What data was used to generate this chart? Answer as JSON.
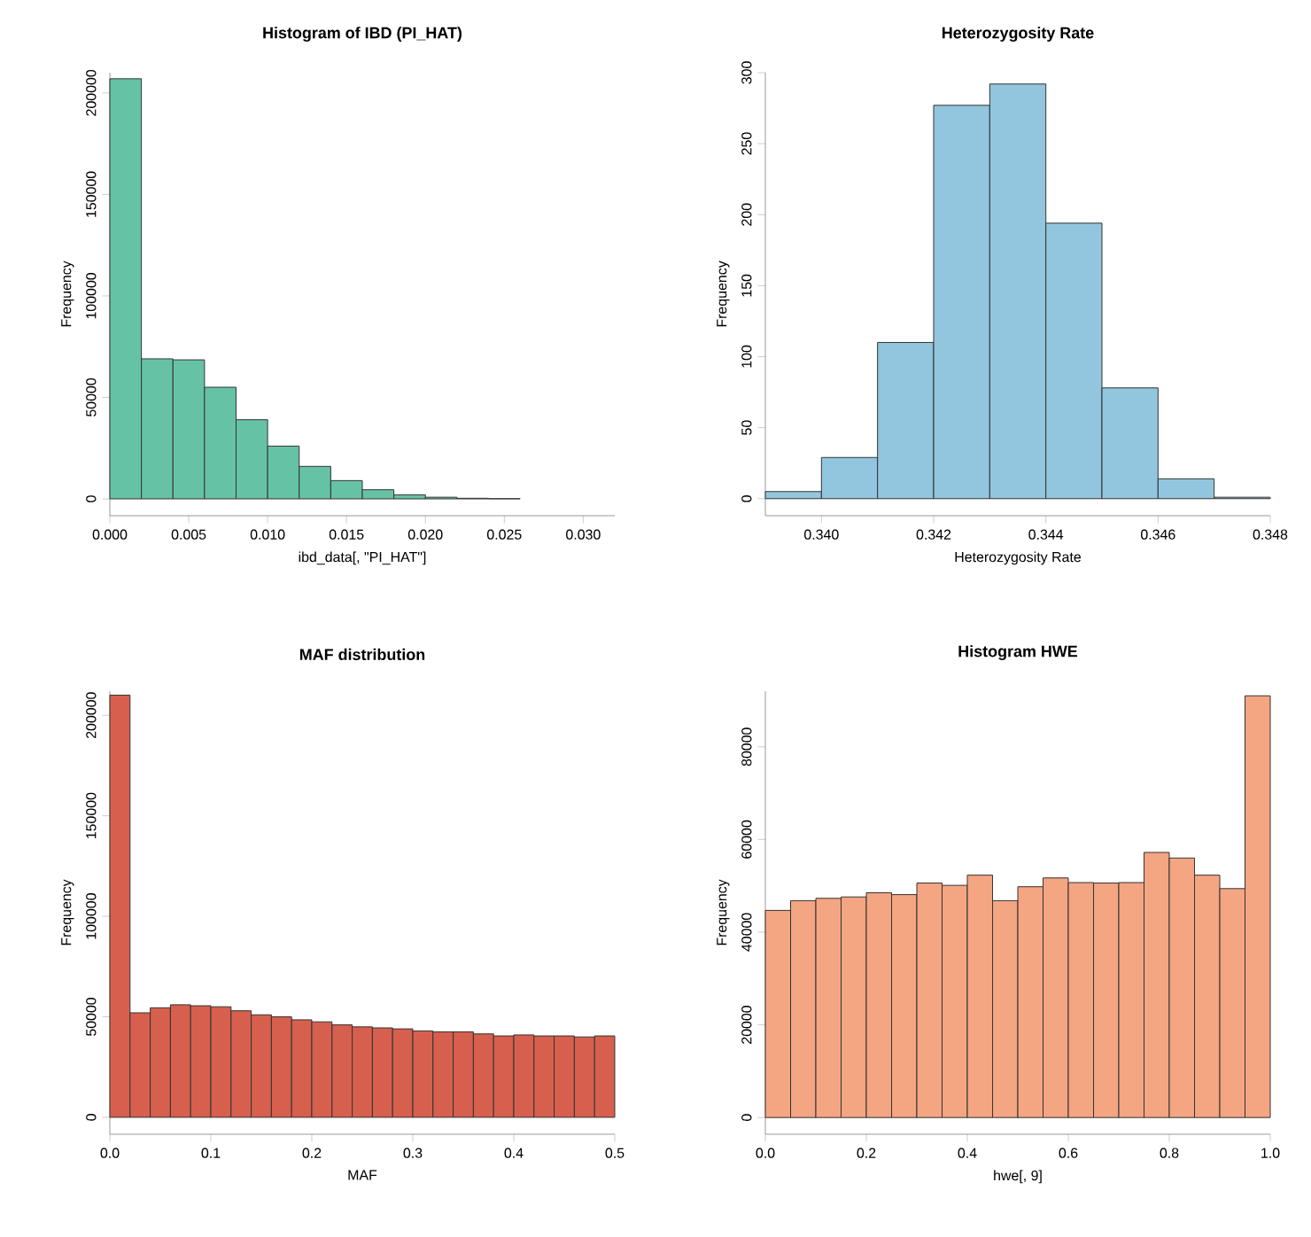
{
  "chart_data": [
    {
      "type": "histogram",
      "title": "Histogram of IBD (PI_HAT)",
      "xlabel": "ibd_data[, \"PI_HAT\"]",
      "ylabel": "Frequency",
      "color": "#66c2a5",
      "bins": [
        0.0,
        0.002,
        0.004,
        0.006,
        0.008,
        0.01,
        0.012,
        0.014,
        0.016,
        0.018,
        0.02,
        0.022,
        0.024,
        0.026,
        0.028,
        0.03,
        0.032
      ],
      "values": [
        207000,
        69000,
        68500,
        55000,
        39000,
        26000,
        16000,
        9000,
        4500,
        2000,
        800,
        300,
        100,
        null,
        null,
        null
      ],
      "xlim": [
        0.0,
        0.032
      ],
      "ylim": [
        -8300,
        210000
      ],
      "xticks": [
        {
          "value": 0.0,
          "label": "0.000"
        },
        {
          "value": 0.005,
          "label": "0.005"
        },
        {
          "value": 0.01,
          "label": "0.010"
        },
        {
          "value": 0.015,
          "label": "0.015"
        },
        {
          "value": 0.02,
          "label": "0.020"
        },
        {
          "value": 0.025,
          "label": "0.025"
        },
        {
          "value": 0.03,
          "label": "0.030"
        }
      ],
      "yticks": [
        0,
        50000,
        100000,
        150000,
        200000
      ]
    },
    {
      "type": "histogram",
      "title": "Heterozygosity Rate",
      "xlabel": "Heterozygosity Rate",
      "ylabel": "Frequency",
      "color": "#92c5de",
      "bins": [
        0.339,
        0.34,
        0.341,
        0.342,
        0.343,
        0.344,
        0.345,
        0.346,
        0.347,
        0.348
      ],
      "values": [
        5,
        29,
        110,
        277,
        292,
        194,
        78,
        14,
        1
      ],
      "xlim": [
        0.339,
        0.348
      ],
      "ylim": [
        -12,
        300
      ],
      "xticks": [
        {
          "value": 0.34,
          "label": "0.340"
        },
        {
          "value": 0.342,
          "label": "0.342"
        },
        {
          "value": 0.344,
          "label": "0.344"
        },
        {
          "value": 0.346,
          "label": "0.346"
        },
        {
          "value": 0.348,
          "label": "0.348"
        }
      ],
      "yticks": [
        0,
        50,
        100,
        150,
        200,
        250,
        300
      ]
    },
    {
      "type": "histogram",
      "title": "MAF distribution",
      "xlabel": "MAF",
      "ylabel": "Frequency",
      "color": "#d6604d",
      "bins": [
        0.0,
        0.02,
        0.04,
        0.06,
        0.08,
        0.1,
        0.12,
        0.14,
        0.16,
        0.18,
        0.2,
        0.22,
        0.24,
        0.26,
        0.28,
        0.3,
        0.32,
        0.34,
        0.36,
        0.38,
        0.4,
        0.42,
        0.44,
        0.46,
        0.48,
        0.5
      ],
      "values": [
        210000,
        52000,
        54500,
        56000,
        55500,
        55000,
        53000,
        51000,
        50000,
        48500,
        47500,
        46000,
        45000,
        44500,
        44000,
        43000,
        42500,
        42500,
        41500,
        40500,
        41000,
        40500,
        40500,
        40000,
        40500
      ],
      "xlim": [
        0.0,
        0.5
      ],
      "ylim": [
        -8400,
        212000
      ],
      "xticks": [
        {
          "value": 0.0,
          "label": "0.0"
        },
        {
          "value": 0.1,
          "label": "0.1"
        },
        {
          "value": 0.2,
          "label": "0.2"
        },
        {
          "value": 0.3,
          "label": "0.3"
        },
        {
          "value": 0.4,
          "label": "0.4"
        },
        {
          "value": 0.5,
          "label": "0.5"
        }
      ],
      "yticks": [
        0,
        50000,
        100000,
        150000,
        200000
      ]
    },
    {
      "type": "histogram",
      "title": "Histogram HWE",
      "xlabel": "hwe[, 9]",
      "ylabel": "Frequency",
      "color": "#f4a582",
      "bins": [
        0.0,
        0.05,
        0.1,
        0.15,
        0.2,
        0.25,
        0.3,
        0.35,
        0.4,
        0.45,
        0.5,
        0.55,
        0.6,
        0.65,
        0.7,
        0.75,
        0.8,
        0.85,
        0.9,
        0.95,
        1.0
      ],
      "values": [
        44700,
        46800,
        47300,
        47600,
        48500,
        48100,
        50600,
        50100,
        52300,
        46800,
        49800,
        51700,
        50700,
        50600,
        50700,
        57200,
        56000,
        52300,
        49400,
        91000
      ],
      "xlim": [
        0.0,
        1.0
      ],
      "ylim": [
        -3600,
        92000
      ],
      "xticks": [
        {
          "value": 0.0,
          "label": "0.0"
        },
        {
          "value": 0.2,
          "label": "0.2"
        },
        {
          "value": 0.4,
          "label": "0.4"
        },
        {
          "value": 0.6,
          "label": "0.6"
        },
        {
          "value": 0.8,
          "label": "0.8"
        },
        {
          "value": 1.0,
          "label": "1.0"
        }
      ],
      "yticks": [
        0,
        20000,
        40000,
        60000,
        80000
      ]
    }
  ]
}
